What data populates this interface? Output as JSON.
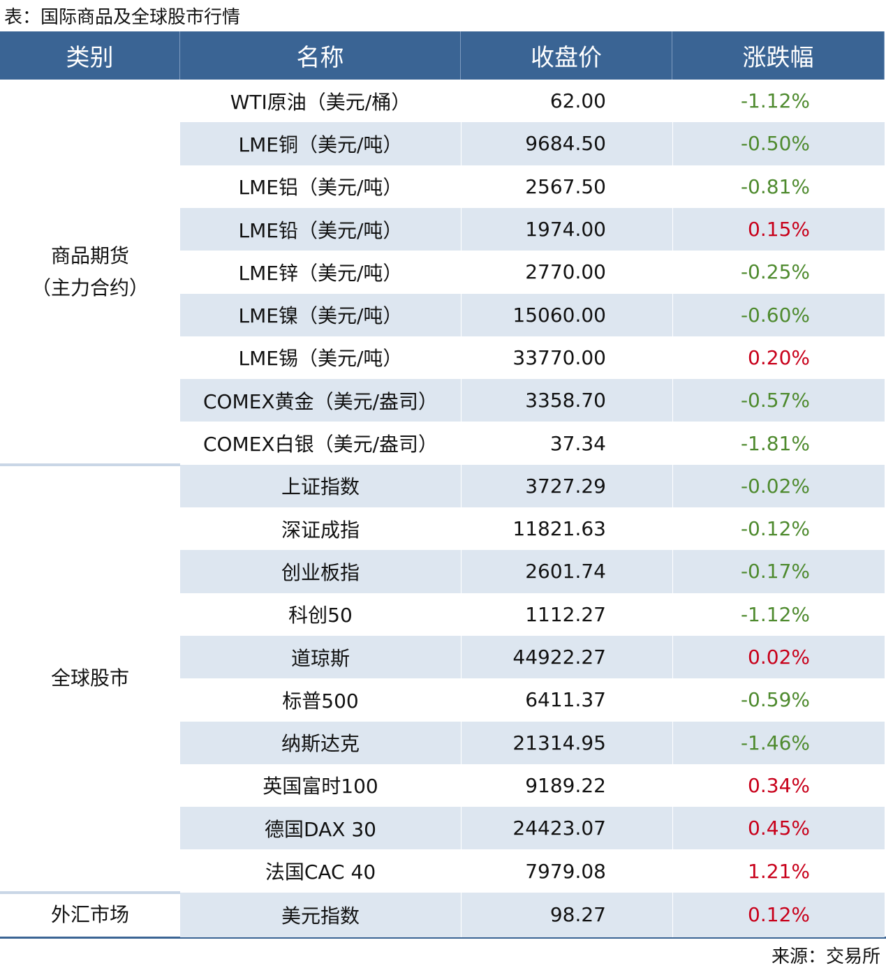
{
  "header": {
    "title": "表：国际商品及全球股市行情"
  },
  "table": {
    "columns": [
      "类别",
      "名称",
      "收盘价",
      "涨跌幅"
    ],
    "groups": [
      {
        "category": "商品期货\n（主力合约）",
        "rows": [
          [
            "WTI原油（美元/桶）",
            "62.00",
            "-1.12%"
          ],
          [
            "LME铜（美元/吨）",
            "9684.50",
            "-0.50%"
          ],
          [
            "LME铝（美元/吨）",
            "2567.50",
            "-0.81%"
          ],
          [
            "LME铅（美元/吨）",
            "1974.00",
            "0.15%"
          ],
          [
            "LME锌（美元/吨）",
            "2770.00",
            "-0.25%"
          ],
          [
            "LME镍（美元/吨）",
            "15060.00",
            "-0.60%"
          ],
          [
            "LME锡（美元/吨）",
            "33770.00",
            "0.20%"
          ],
          [
            "COMEX黄金（美元/盎司）",
            "3358.70",
            "-0.57%"
          ],
          [
            "COMEX白银（美元/盎司）",
            "37.34",
            "-1.81%"
          ]
        ]
      },
      {
        "category": "全球股市",
        "rows": [
          [
            "上证指数",
            "3727.29",
            "-0.02%"
          ],
          [
            "深证成指",
            "11821.63",
            "-0.12%"
          ],
          [
            "创业板指",
            "2601.74",
            "-0.17%"
          ],
          [
            "科创50",
            "1112.27",
            "-1.12%"
          ],
          [
            "道琼斯",
            "44922.27",
            "0.02%"
          ],
          [
            "标普500",
            "6411.37",
            "-0.59%"
          ],
          [
            "纳斯达克",
            "21314.95",
            "-1.46%"
          ],
          [
            "英国富时100",
            "9189.22",
            "0.34%"
          ],
          [
            "德国DAX 30",
            "24423.07",
            "0.45%"
          ],
          [
            "法国CAC 40",
            "7979.08",
            "1.21%"
          ]
        ]
      },
      {
        "category": "外汇市场",
        "rows": [
          [
            "美元指数",
            "98.27",
            "0.12%"
          ]
        ]
      }
    ]
  },
  "footer": {
    "source": "来源：交易所"
  }
}
